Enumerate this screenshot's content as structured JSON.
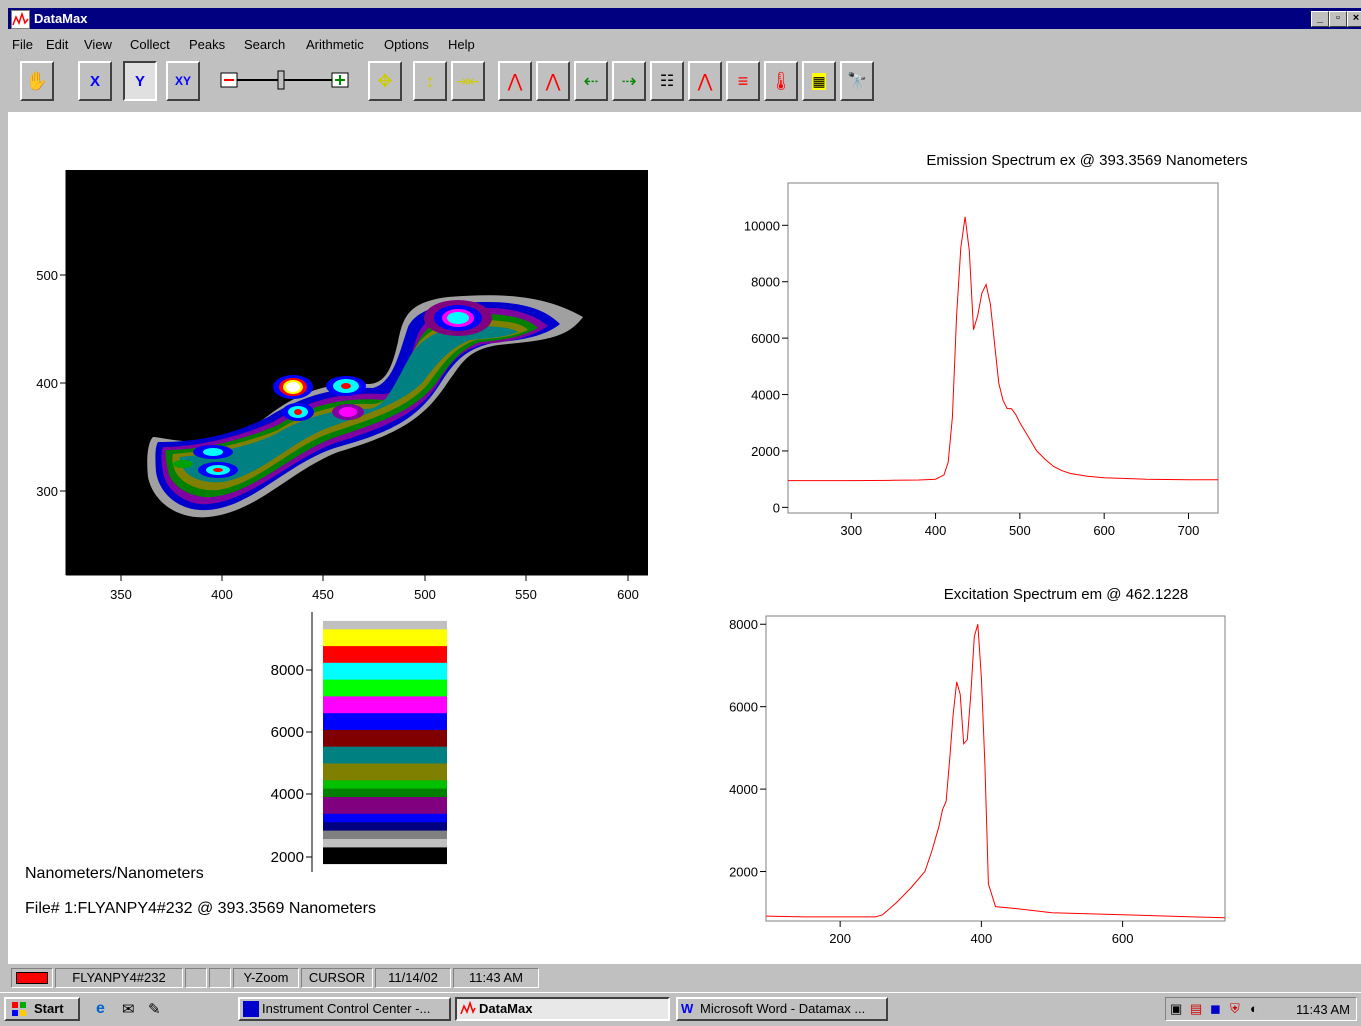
{
  "window": {
    "title": "DataMax"
  },
  "menu": [
    "File",
    "Edit",
    "View",
    "Collect",
    "Peaks",
    "Search",
    "Arithmetic",
    "Options",
    "Help"
  ],
  "toolbar": {
    "buttons": [
      "pan",
      "x-zoom",
      "y-zoom",
      "xy-zoom",
      "zoom-slider",
      "move-all",
      "y-scale",
      "x-scale",
      "peak-up",
      "peak-up-2",
      "left-arrow",
      "right-arrow",
      "data-table",
      "overlay",
      "stack",
      "temperature",
      "grid",
      "binoculars"
    ]
  },
  "contour": {
    "x_ticks": [
      "350",
      "400",
      "450",
      "500",
      "550",
      "600"
    ],
    "y_ticks": [
      "300",
      "400",
      "500"
    ]
  },
  "colorbar": {
    "ticks": [
      "2000",
      "4000",
      "6000",
      "8000"
    ],
    "colors": [
      "#ffffff",
      "#000000",
      "#000000",
      "#c0c0c0",
      "#808080",
      "#000080",
      "#0000ff",
      "#800080",
      "#800080",
      "#008000",
      "#00c000",
      "#808000",
      "#808000",
      "#008080",
      "#008080",
      "#800000",
      "#800000",
      "#0000ff",
      "#0000ff",
      "#ff00ff",
      "#ff00ff",
      "#00ff00",
      "#00ff00",
      "#00ffff",
      "#00ffff",
      "#ff0000",
      "#ff0000",
      "#ffff00",
      "#ffff00",
      "#c0c0c0",
      "#ffffff"
    ]
  },
  "emission": {
    "title": "Emission Spectrum ex @ 393.3569 Nanometers"
  },
  "excitation": {
    "title": "Excitation Spectrum em @  462.1228"
  },
  "chart_data": [
    {
      "type": "line",
      "title": "Emission Spectrum ex @ 393.3569 Nanometers",
      "xlim": [
        225,
        735
      ],
      "ylim": [
        -200,
        11500
      ],
      "x_ticks": [
        300,
        400,
        500,
        600,
        700
      ],
      "y_ticks": [
        0,
        2000,
        4000,
        6000,
        8000,
        10000
      ],
      "color": "#ff0000",
      "series": [
        {
          "x": [
            225,
            260,
            300,
            350,
            380,
            400,
            410,
            415,
            420,
            425,
            430,
            435,
            440,
            445,
            450,
            455,
            460,
            465,
            470,
            475,
            480,
            485,
            490,
            495,
            500,
            510,
            520,
            530,
            540,
            550,
            560,
            580,
            600,
            650,
            700,
            735
          ],
          "y": [
            950,
            950,
            950,
            960,
            970,
            1000,
            1150,
            1600,
            3200,
            6800,
            9200,
            10300,
            9100,
            6300,
            6800,
            7600,
            7900,
            7200,
            5800,
            4400,
            3800,
            3500,
            3500,
            3300,
            3000,
            2500,
            2000,
            1700,
            1450,
            1300,
            1200,
            1100,
            1050,
            1000,
            980,
            980
          ]
        }
      ]
    },
    {
      "type": "line",
      "title": "Excitation Spectrum em @  462.1228",
      "xlim": [
        95,
        745
      ],
      "ylim": [
        800,
        8200
      ],
      "x_ticks": [
        200,
        400,
        600
      ],
      "y_ticks": [
        2000,
        4000,
        6000,
        8000
      ],
      "color": "#ff0000",
      "series": [
        {
          "x": [
            95,
            150,
            200,
            250,
            260,
            280,
            300,
            320,
            330,
            340,
            345,
            350,
            355,
            360,
            365,
            370,
            375,
            380,
            385,
            390,
            395,
            400,
            405,
            410,
            420,
            450,
            500,
            600,
            700,
            745
          ],
          "y": [
            920,
            900,
            900,
            900,
            950,
            1250,
            1600,
            2000,
            2500,
            3100,
            3500,
            3700,
            4700,
            5800,
            6600,
            6300,
            5100,
            5200,
            6300,
            7700,
            8000,
            6700,
            4600,
            1700,
            1150,
            1100,
            1000,
            950,
            900,
            880
          ]
        }
      ]
    }
  ],
  "labels": {
    "units": "Nanometers/Nanometers",
    "file": "File# 1:FLYANPY4#232 @ 393.3569 Nanometers"
  },
  "status": {
    "color": "#ff0000",
    "file": "FLYANPY4#232",
    "mode": "Y-Zoom",
    "cursor": "CURSOR",
    "date": "11/14/02",
    "time": "11:43 AM"
  },
  "taskbar": {
    "start": "Start",
    "tasks": [
      "Instrument Control Center -...",
      "DataMax",
      "Microsoft Word - Datamax ..."
    ],
    "clock": "11:43 AM"
  }
}
